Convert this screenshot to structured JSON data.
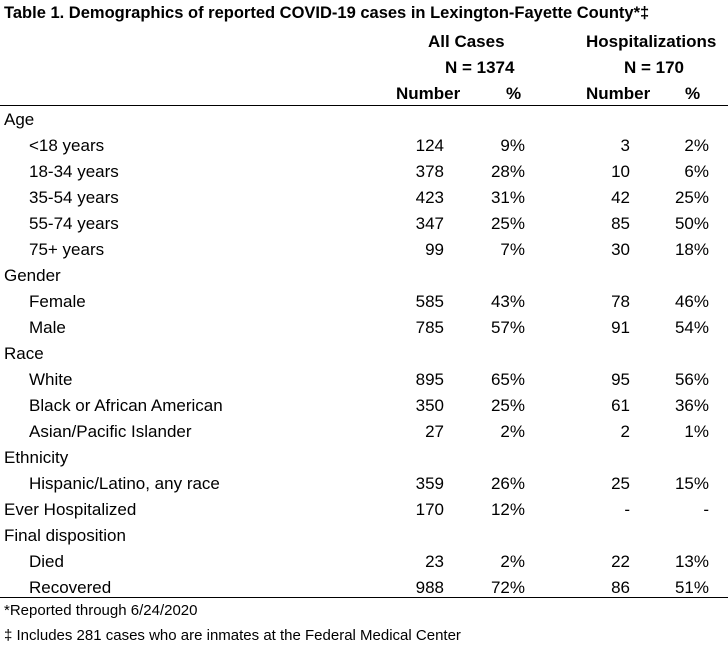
{
  "title": "Table 1. Demographics of reported COVID-19 cases in Lexington-Fayette County*‡",
  "headers": {
    "group1": "All Cases",
    "group1_n": "N = 1374",
    "group2": "Hospitalizations",
    "group2_n": "N = 170",
    "number": "Number",
    "percent": "%"
  },
  "rows": [
    {
      "label": "Age",
      "type": "section"
    },
    {
      "label": "<18 years",
      "type": "sub",
      "n1": "124",
      "p1": "9%",
      "n2": "3",
      "p2": "2%"
    },
    {
      "label": "18-34 years",
      "type": "sub",
      "n1": "378",
      "p1": "28%",
      "n2": "10",
      "p2": "6%"
    },
    {
      "label": "35-54 years",
      "type": "sub",
      "n1": "423",
      "p1": "31%",
      "n2": "42",
      "p2": "25%"
    },
    {
      "label": "55-74 years",
      "type": "sub",
      "n1": "347",
      "p1": "25%",
      "n2": "85",
      "p2": "50%"
    },
    {
      "label": "75+ years",
      "type": "sub",
      "n1": "99",
      "p1": "7%",
      "n2": "30",
      "p2": "18%"
    },
    {
      "label": "Gender",
      "type": "section"
    },
    {
      "label": "Female",
      "type": "sub",
      "n1": "585",
      "p1": "43%",
      "n2": "78",
      "p2": "46%"
    },
    {
      "label": "Male",
      "type": "sub",
      "n1": "785",
      "p1": "57%",
      "n2": "91",
      "p2": "54%"
    },
    {
      "label": "Race",
      "type": "section"
    },
    {
      "label": "White",
      "type": "sub",
      "n1": "895",
      "p1": "65%",
      "n2": "95",
      "p2": "56%"
    },
    {
      "label": "Black or African American",
      "type": "sub",
      "n1": "350",
      "p1": "25%",
      "n2": "61",
      "p2": "36%"
    },
    {
      "label": "Asian/Pacific Islander",
      "type": "sub",
      "n1": "27",
      "p1": "2%",
      "n2": "2",
      "p2": "1%"
    },
    {
      "label": "Ethnicity",
      "type": "section"
    },
    {
      "label": "Hispanic/Latino, any race",
      "type": "sub",
      "n1": "359",
      "p1": "26%",
      "n2": "25",
      "p2": "15%"
    },
    {
      "label": "Ever Hospitalized",
      "type": "section",
      "n1": "170",
      "p1": "12%",
      "n2": "-",
      "p2": "-"
    },
    {
      "label": "Final disposition",
      "type": "section"
    },
    {
      "label": "Died",
      "type": "sub",
      "n1": "23",
      "p1": "2%",
      "n2": "22",
      "p2": "13%"
    },
    {
      "label": "Recovered",
      "type": "sub",
      "n1": "988",
      "p1": "72%",
      "n2": "86",
      "p2": "51%"
    }
  ],
  "footnotes": [
    "*Reported through 6/24/2020",
    "‡ Includes 281 cases who are inmates at the Federal Medical Center"
  ]
}
